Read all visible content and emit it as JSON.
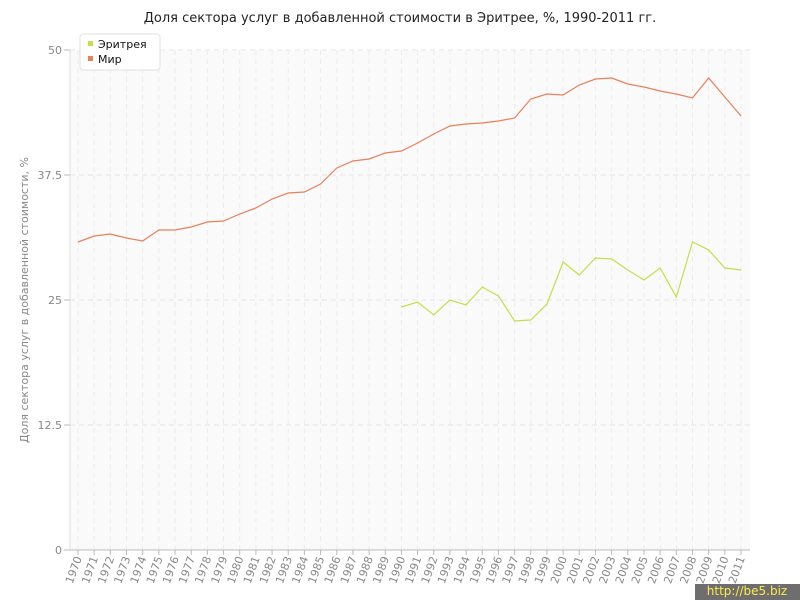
{
  "chart_data": {
    "type": "line",
    "title": "Доля сектора услуг в добавленной стоимости в Эритрее, %, 1990-2011 гг.",
    "y_label": "Доля сектора услуг в добавленной стоимости, %",
    "watermark": "http://be5.biz",
    "categories": [
      "1970",
      "1971",
      "1972",
      "1973",
      "1974",
      "1975",
      "1976",
      "1977",
      "1978",
      "1979",
      "1980",
      "1981",
      "1982",
      "1983",
      "1984",
      "1985",
      "1986",
      "1987",
      "1988",
      "1989",
      "1990",
      "1991",
      "1992",
      "1993",
      "1994",
      "1995",
      "1996",
      "1997",
      "1998",
      "1999",
      "2000",
      "2001",
      "2002",
      "2003",
      "2004",
      "2005",
      "2006",
      "2007",
      "2008",
      "2009",
      "2010",
      "2011"
    ],
    "series": [
      {
        "name": "Эритрея",
        "color": "#c8dc4c",
        "values": [
          null,
          null,
          null,
          null,
          null,
          null,
          null,
          null,
          null,
          null,
          null,
          null,
          null,
          null,
          null,
          null,
          null,
          null,
          null,
          null,
          24.3,
          24.8,
          23.5,
          25.0,
          24.5,
          26.3,
          25.4,
          22.9,
          23.0,
          24.6,
          28.8,
          27.5,
          29.2,
          29.1,
          28.0,
          27.0,
          28.2,
          25.3,
          30.8,
          30.0,
          28.2,
          28.0
        ]
      },
      {
        "name": "Мир",
        "color": "#e8805a",
        "values": [
          30.8,
          31.4,
          31.6,
          31.2,
          30.9,
          32.0,
          32.0,
          32.3,
          32.8,
          32.9,
          33.6,
          34.2,
          35.1,
          35.7,
          35.8,
          36.6,
          38.2,
          38.9,
          39.1,
          39.7,
          39.9,
          40.7,
          41.6,
          42.4,
          42.6,
          42.7,
          42.9,
          43.2,
          45.1,
          45.6,
          45.5,
          46.5,
          47.1,
          47.2,
          46.6,
          46.3,
          45.9,
          45.6,
          45.2,
          47.2,
          45.3,
          43.4
        ]
      }
    ],
    "ylim": [
      0,
      50
    ],
    "yticks": [
      0,
      12.5,
      25,
      37.5,
      50
    ],
    "grid": true,
    "legend": "top-left"
  }
}
